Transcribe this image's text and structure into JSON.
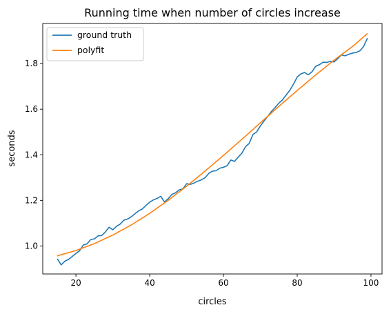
{
  "chart_data": {
    "type": "line",
    "title": "Running time when number of circles increase",
    "xlabel": "circles",
    "ylabel": "seconds",
    "xlim": [
      11,
      103
    ],
    "ylim": [
      0.877,
      1.976
    ],
    "x_ticks": [
      20,
      40,
      60,
      80,
      100
    ],
    "x_tick_labels": [
      "20",
      "40",
      "60",
      "80",
      "100"
    ],
    "y_ticks": [
      1.0,
      1.2,
      1.4,
      1.6,
      1.8
    ],
    "y_tick_labels": [
      "1.0",
      "1.2",
      "1.4",
      "1.6",
      "1.8"
    ],
    "grid": false,
    "legend_position": "top-left",
    "series": [
      {
        "name": "ground truth",
        "color": "#1f77b4",
        "x": [
          15,
          16,
          17,
          18,
          19,
          20,
          21,
          22,
          23,
          24,
          25,
          26,
          27,
          28,
          29,
          30,
          31,
          32,
          33,
          34,
          35,
          36,
          37,
          38,
          39,
          40,
          41,
          42,
          43,
          44,
          45,
          46,
          47,
          48,
          49,
          50,
          51,
          52,
          53,
          54,
          55,
          56,
          57,
          58,
          59,
          60,
          61,
          62,
          63,
          64,
          65,
          66,
          67,
          68,
          69,
          70,
          71,
          72,
          73,
          74,
          75,
          76,
          77,
          78,
          79,
          80,
          81,
          82,
          83,
          84,
          85,
          86,
          87,
          88,
          89,
          90,
          91,
          92,
          93,
          94,
          95,
          96,
          97,
          98,
          99
        ],
        "y": [
          0.942,
          0.917,
          0.933,
          0.941,
          0.954,
          0.967,
          0.979,
          1.004,
          1.009,
          1.028,
          1.031,
          1.044,
          1.046,
          1.062,
          1.082,
          1.071,
          1.086,
          1.096,
          1.113,
          1.118,
          1.128,
          1.141,
          1.154,
          1.162,
          1.178,
          1.192,
          1.202,
          1.208,
          1.218,
          1.193,
          1.207,
          1.226,
          1.233,
          1.246,
          1.25,
          1.273,
          1.27,
          1.276,
          1.284,
          1.29,
          1.299,
          1.318,
          1.328,
          1.33,
          1.341,
          1.345,
          1.352,
          1.377,
          1.371,
          1.39,
          1.407,
          1.436,
          1.45,
          1.489,
          1.5,
          1.526,
          1.548,
          1.568,
          1.59,
          1.607,
          1.626,
          1.641,
          1.662,
          1.683,
          1.71,
          1.741,
          1.755,
          1.761,
          1.751,
          1.764,
          1.788,
          1.795,
          1.806,
          1.805,
          1.81,
          1.807,
          1.822,
          1.838,
          1.834,
          1.841,
          1.846,
          1.849,
          1.856,
          1.875,
          1.91
        ]
      },
      {
        "name": "polyfit",
        "color": "#ff7f0e",
        "x": [
          15,
          20,
          25,
          30,
          35,
          40,
          45,
          50,
          55,
          60,
          65,
          70,
          75,
          80,
          85,
          90,
          95,
          99
        ],
        "y": [
          0.957,
          0.98,
          1.01,
          1.048,
          1.092,
          1.143,
          1.2,
          1.262,
          1.328,
          1.397,
          1.468,
          1.54,
          1.612,
          1.682,
          1.75,
          1.815,
          1.875,
          1.931
        ]
      }
    ]
  }
}
